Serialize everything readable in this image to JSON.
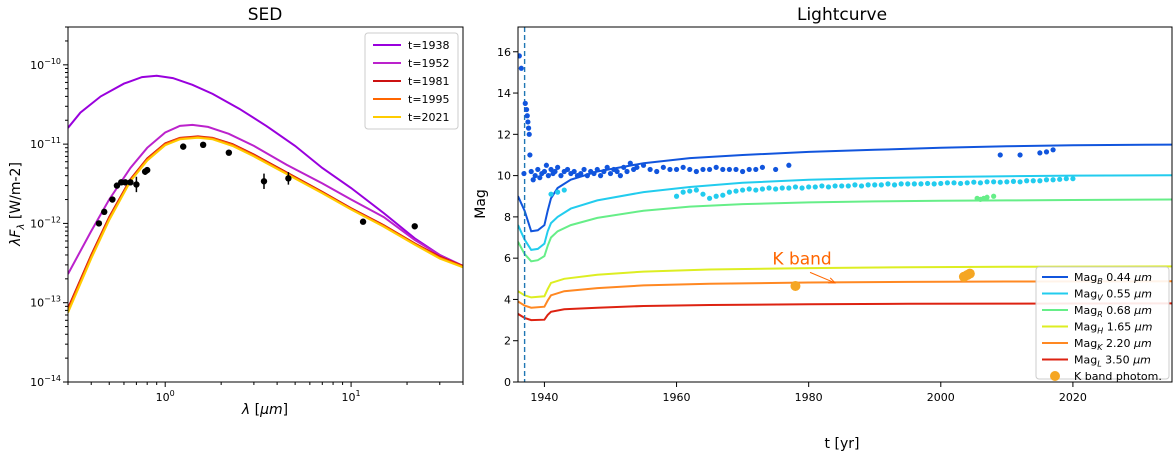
{
  "chart_data": [
    {
      "type": "line",
      "title": "SED",
      "xlabel": "λ [μm]",
      "ylabel": "λF_λ [W/m-2]",
      "xscale": "log",
      "yscale": "log",
      "xlim": [
        0.3,
        40
      ],
      "ylim": [
        1e-14,
        3e-10
      ],
      "xtick_labels": [
        "10^0",
        "10^1"
      ],
      "ytick_labels": [
        "10^-14",
        "10^-13",
        "10^-12",
        "10^-11",
        "10^-10"
      ],
      "legend_position": "top-right",
      "series": [
        {
          "name": "t=1938",
          "color": "#9900dd",
          "x": [
            0.3,
            0.35,
            0.45,
            0.6,
            0.75,
            0.9,
            1.1,
            1.4,
            1.8,
            2.5,
            3.5,
            5,
            7,
            10,
            15,
            22,
            30,
            40
          ],
          "y": [
            1.6e-11,
            2.5e-11,
            4e-11,
            5.8e-11,
            7e-11,
            7.3e-11,
            6.8e-11,
            5.6e-11,
            4.3e-11,
            2.8e-11,
            1.7e-11,
            9.5e-12,
            5e-12,
            2.8e-12,
            1.35e-12,
            6.5e-13,
            4e-13,
            2.9e-13
          ]
        },
        {
          "name": "t=1952",
          "color": "#bb22cc",
          "x": [
            0.3,
            0.4,
            0.5,
            0.65,
            0.8,
            1.0,
            1.2,
            1.4,
            1.7,
            2.2,
            3,
            4.5,
            7,
            10,
            15,
            22,
            30,
            40
          ],
          "y": [
            2.3e-13,
            8e-13,
            2e-12,
            5e-12,
            9e-12,
            1.4e-11,
            1.7e-11,
            1.75e-11,
            1.65e-11,
            1.35e-11,
            9.5e-12,
            5.5e-12,
            3.2e-12,
            2e-12,
            1.2e-12,
            6.2e-13,
            4e-13,
            2.9e-13
          ]
        },
        {
          "name": "t=1981",
          "color": "#cc1111",
          "x": [
            0.3,
            0.4,
            0.5,
            0.65,
            0.8,
            1.0,
            1.2,
            1.5,
            1.8,
            2.3,
            3,
            4.5,
            7,
            10,
            15,
            22,
            30,
            40
          ],
          "y": [
            8.5e-14,
            4e-13,
            1.2e-12,
            3.6e-12,
            6.6e-12,
            1.02e-11,
            1.2e-11,
            1.25e-11,
            1.2e-11,
            1e-11,
            7.4e-12,
            4.4e-12,
            2.5e-12,
            1.55e-12,
            9.5e-13,
            5.6e-13,
            3.8e-13,
            2.9e-13
          ]
        },
        {
          "name": "t=1995",
          "color": "#ff6600",
          "x": [
            0.3,
            0.4,
            0.5,
            0.65,
            0.8,
            1.0,
            1.2,
            1.5,
            1.8,
            2.3,
            3,
            4.5,
            7,
            10,
            15,
            22,
            30,
            40
          ],
          "y": [
            8e-14,
            3.8e-13,
            1.15e-12,
            3.5e-12,
            6.4e-12,
            1e-11,
            1.18e-11,
            1.23e-11,
            1.18e-11,
            9.8e-12,
            7.2e-12,
            4.3e-12,
            2.45e-12,
            1.52e-12,
            9.3e-13,
            5.5e-13,
            3.7e-13,
            2.85e-13
          ]
        },
        {
          "name": "t=2021",
          "color": "#ffcc00",
          "x": [
            0.3,
            0.4,
            0.5,
            0.65,
            0.8,
            1.0,
            1.2,
            1.5,
            1.8,
            2.3,
            3,
            4.5,
            7,
            10,
            15,
            22,
            30,
            40
          ],
          "y": [
            7.5e-14,
            3.6e-13,
            1.1e-12,
            3.4e-12,
            6.2e-12,
            9.7e-12,
            1.15e-11,
            1.2e-11,
            1.15e-11,
            9.5e-12,
            7e-12,
            4.2e-12,
            2.4e-12,
            1.5e-12,
            9.1e-13,
            5.4e-13,
            3.6e-13,
            2.8e-13
          ]
        }
      ],
      "points": {
        "color": "#000000",
        "x": [
          0.44,
          0.47,
          0.52,
          0.55,
          0.58,
          0.61,
          0.65,
          0.7,
          0.78,
          0.8,
          1.25,
          1.6,
          2.2,
          3.4,
          4.6,
          11.6,
          22
        ],
        "y": [
          1e-12,
          1.4e-12,
          2e-12,
          3e-12,
          3.3e-12,
          3.3e-12,
          3.3e-12,
          3.1e-12,
          4.5e-12,
          4.7e-12,
          9.3e-12,
          9.8e-12,
          7.8e-12,
          3.4e-12,
          3.7e-12,
          1.05e-12,
          9.2e-13
        ],
        "yerr_factor": [
          1.0,
          1.0,
          1.0,
          1.0,
          1.0,
          1.0,
          1.0,
          1.25,
          1.1,
          1.0,
          1.0,
          1.0,
          1.0,
          1.25,
          1.2,
          1.0,
          1.0
        ]
      }
    },
    {
      "type": "line",
      "title": "Lightcurve",
      "xlabel": "t [yr]",
      "ylabel": "Mag",
      "xlim": [
        1936,
        2035
      ],
      "ylim": [
        0,
        17.2
      ],
      "xticks": [
        1940,
        1960,
        1980,
        2000,
        2020
      ],
      "yticks": [
        0,
        2,
        4,
        6,
        8,
        10,
        12,
        14,
        16
      ],
      "legend_position": "bottom-right",
      "vline": {
        "x": 1937,
        "color": "#1f77b4",
        "style": "dashed"
      },
      "annotation": {
        "text": "K band",
        "color": "#ff6600",
        "x": 1979,
        "y": 5.7,
        "arrow_to": [
          1984,
          4.8
        ]
      },
      "series": [
        {
          "name_main": "Mag",
          "sub": "B",
          "name_rest": " 0.44  μm",
          "color": "#1155dd",
          "x": [
            1936,
            1937,
            1938,
            1939,
            1940,
            1940.5,
            1941,
            1942,
            1944,
            1948,
            1955,
            1962,
            1970,
            1980,
            1990,
            2000,
            2010,
            2020,
            2035
          ],
          "y": [
            9.0,
            8.3,
            7.3,
            7.35,
            7.6,
            8.3,
            8.9,
            9.4,
            9.8,
            10.2,
            10.6,
            10.85,
            11.0,
            11.15,
            11.25,
            11.35,
            11.42,
            11.47,
            11.5
          ]
        },
        {
          "name_main": "Mag",
          "sub": "V",
          "name_rest": " 0.55  μm",
          "color": "#22ccee",
          "x": [
            1936,
            1937,
            1938,
            1939,
            1940,
            1940.5,
            1941,
            1942,
            1944,
            1948,
            1955,
            1962,
            1970,
            1980,
            1990,
            2000,
            2010,
            2020,
            2035
          ],
          "y": [
            7.6,
            6.9,
            6.4,
            6.45,
            6.7,
            7.3,
            7.7,
            8.0,
            8.4,
            8.8,
            9.2,
            9.45,
            9.65,
            9.8,
            9.88,
            9.93,
            9.97,
            10.0,
            10.02
          ]
        },
        {
          "name_main": "Mag",
          "sub": "R",
          "name_rest": " 0.68  μm",
          "color": "#66ee88",
          "x": [
            1936,
            1937,
            1938,
            1939,
            1940,
            1940.5,
            1941,
            1942,
            1944,
            1948,
            1955,
            1962,
            1970,
            1980,
            1990,
            2000,
            2010,
            2020,
            2035
          ],
          "y": [
            6.8,
            6.2,
            5.85,
            5.9,
            6.1,
            6.6,
            7.0,
            7.3,
            7.6,
            7.95,
            8.3,
            8.5,
            8.62,
            8.7,
            8.75,
            8.78,
            8.8,
            8.82,
            8.84
          ]
        },
        {
          "name_main": "Mag",
          "sub": "H",
          "name_rest": " 1.65  μm",
          "color": "#ddee22",
          "x": [
            1936,
            1937,
            1938,
            1940,
            1940.5,
            1941,
            1943,
            1948,
            1955,
            1965,
            1980,
            1995,
            2010,
            2035
          ],
          "y": [
            4.4,
            4.2,
            4.1,
            4.15,
            4.5,
            4.8,
            5.0,
            5.2,
            5.35,
            5.45,
            5.52,
            5.56,
            5.58,
            5.6
          ]
        },
        {
          "name_main": "Mag",
          "sub": "K",
          "name_rest": " 2.20  μm",
          "color": "#ff8822",
          "x": [
            1936,
            1937,
            1938,
            1940,
            1940.5,
            1941,
            1943,
            1948,
            1955,
            1965,
            1980,
            1995,
            2010,
            2035
          ],
          "y": [
            3.9,
            3.7,
            3.6,
            3.65,
            3.95,
            4.2,
            4.4,
            4.55,
            4.68,
            4.76,
            4.82,
            4.85,
            4.87,
            4.88
          ]
        },
        {
          "name_main": "Mag",
          "sub": "L",
          "name_rest": " 3.50  μm",
          "color": "#dd2211",
          "x": [
            1936,
            1937,
            1938,
            1940,
            1940.5,
            1941,
            1943,
            1948,
            1955,
            1965,
            1980,
            1995,
            2010,
            2035
          ],
          "y": [
            3.3,
            3.1,
            3.0,
            3.02,
            3.25,
            3.4,
            3.52,
            3.6,
            3.68,
            3.73,
            3.77,
            3.79,
            3.8,
            3.81
          ]
        }
      ],
      "scatter": [
        {
          "color": "#1155dd",
          "x": [
            1936.2,
            1936.5,
            1936.9,
            1937.1,
            1937.3,
            1937.4,
            1937.5,
            1937.6,
            1937.7,
            1937.8,
            1938,
            1938.3,
            1938.6,
            1939,
            1939.3,
            1939.6,
            1940,
            1940.3,
            1940.6,
            1941,
            1941.3,
            1941.6,
            1942,
            1942.5,
            1943,
            1943.5,
            1944,
            1944.5,
            1945,
            1945.5,
            1946,
            1946.5,
            1947,
            1947.5,
            1948,
            1948.5,
            1949,
            1949.5,
            1950,
            1950.5,
            1951,
            1951.5,
            1952,
            1952.5,
            1953,
            1953.5,
            1954,
            1955,
            1956,
            1957,
            1958,
            1959,
            1960,
            1961,
            1962,
            1963,
            1964,
            1965,
            1966,
            1967,
            1968,
            1969,
            1970,
            1971,
            1972,
            1973,
            1975,
            1977,
            2009,
            2012,
            2015,
            2016,
            2017
          ],
          "y": [
            15.8,
            15.2,
            10.1,
            13.5,
            13.2,
            12.9,
            12.6,
            12.3,
            12.0,
            11.0,
            10.2,
            9.8,
            10.0,
            10.3,
            9.9,
            10.1,
            10.2,
            10.5,
            10.0,
            10.3,
            10.1,
            10.2,
            10.4,
            10.0,
            10.2,
            10.3,
            10.1,
            10.2,
            10.0,
            10.1,
            10.3,
            10.0,
            10.2,
            10.1,
            10.3,
            10.0,
            10.2,
            10.4,
            10.1,
            10.3,
            10.2,
            10.0,
            10.4,
            10.2,
            10.6,
            10.3,
            10.4,
            10.5,
            10.3,
            10.2,
            10.4,
            10.3,
            10.3,
            10.4,
            10.3,
            10.2,
            10.3,
            10.3,
            10.4,
            10.3,
            10.3,
            10.3,
            10.2,
            10.3,
            10.3,
            10.4,
            10.3,
            10.5,
            11.0,
            11.0,
            11.1,
            11.15,
            11.25
          ]
        },
        {
          "color": "#22ccee",
          "x": [
            1941,
            1942,
            1943,
            1960,
            1961,
            1962,
            1963,
            1964,
            1965,
            1966,
            1967,
            1968,
            1969,
            1970,
            1971,
            1972,
            1973,
            1974,
            1975,
            1976,
            1977,
            1978,
            1979,
            1980,
            1981,
            1982,
            1983,
            1984,
            1985,
            1986,
            1987,
            1988,
            1989,
            1990,
            1991,
            1992,
            1993,
            1994,
            1995,
            1996,
            1997,
            1998,
            1999,
            2000,
            2001,
            2002,
            2003,
            2004,
            2005,
            2006,
            2007,
            2008,
            2009,
            2010,
            2011,
            2012,
            2013,
            2014,
            2015,
            2016,
            2017,
            2018,
            2019,
            2020
          ],
          "y": [
            9.1,
            9.2,
            9.3,
            9.0,
            9.2,
            9.25,
            9.3,
            9.1,
            8.9,
            9.0,
            9.05,
            9.2,
            9.25,
            9.3,
            9.35,
            9.3,
            9.35,
            9.4,
            9.35,
            9.4,
            9.4,
            9.45,
            9.4,
            9.45,
            9.45,
            9.5,
            9.45,
            9.5,
            9.5,
            9.5,
            9.55,
            9.5,
            9.55,
            9.55,
            9.55,
            9.6,
            9.55,
            9.6,
            9.6,
            9.6,
            9.6,
            9.62,
            9.6,
            9.62,
            9.65,
            9.65,
            9.62,
            9.65,
            9.68,
            9.65,
            9.7,
            9.7,
            9.68,
            9.7,
            9.72,
            9.7,
            9.75,
            9.75,
            9.75,
            9.8,
            9.8,
            9.82,
            9.85,
            9.85
          ]
        },
        {
          "color": "#66ee88",
          "x": [
            2005.5,
            2006,
            2006.5,
            2007,
            2008
          ],
          "y": [
            8.9,
            8.85,
            8.9,
            8.95,
            9.0
          ]
        },
        {
          "color": "#f5a623",
          "size": 5,
          "x": [
            1978,
            2003.5,
            2004,
            2004.4
          ],
          "y": [
            4.65,
            5.1,
            5.18,
            5.25
          ]
        }
      ],
      "legend_extra": "K band photom."
    }
  ]
}
